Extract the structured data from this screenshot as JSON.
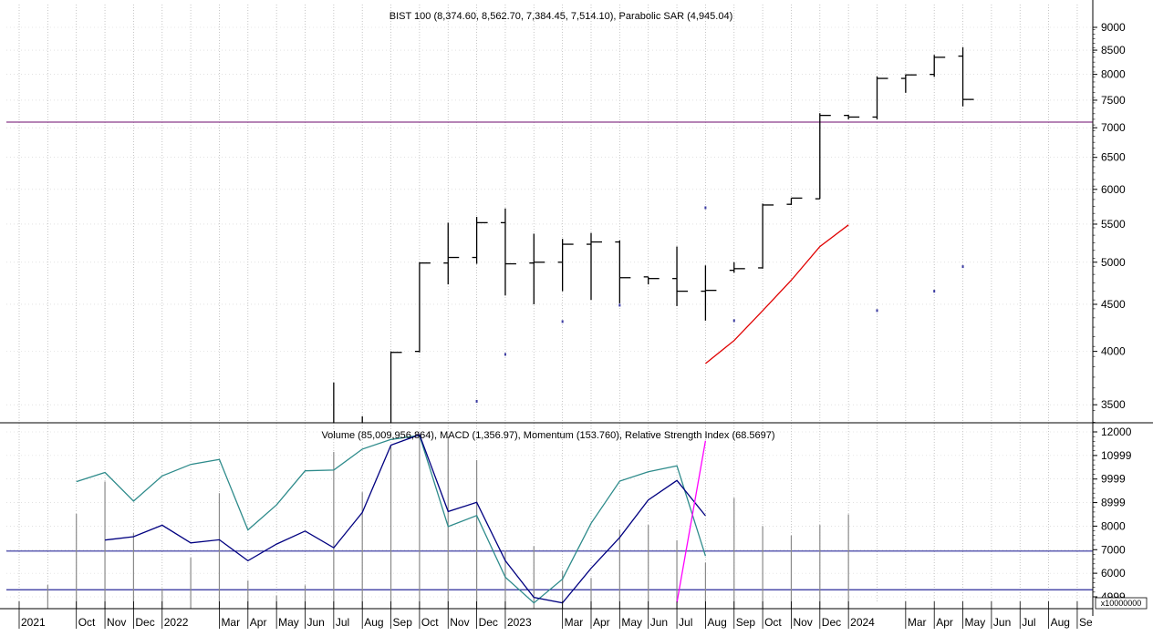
{
  "chart_data": [
    {
      "type": "ohlc",
      "title": "BIST 100 (8,374.60, 8,562.70, 7,384.45, 7,514.10), Parabolic SAR (4,945.04)",
      "yticks": [
        3500,
        4000,
        4500,
        5000,
        5500,
        6000,
        6500,
        7000,
        7500,
        8000,
        8500,
        9000
      ],
      "x_labels": [
        "2021",
        "Oct",
        "Nov",
        "Dec",
        "2022",
        "Mar",
        "Apr",
        "May",
        "Jun",
        "Jul",
        "Aug",
        "Sep",
        "Oct",
        "Nov",
        "Dec",
        "2023",
        "Mar",
        "Apr",
        "May",
        "Jun",
        "Jul",
        "Aug",
        "Sep",
        "Oct",
        "Nov",
        "Dec",
        "2024",
        "Mar",
        "Apr",
        "May",
        "Jun",
        "Jul",
        "Aug",
        "Se"
      ],
      "x_label_index": [
        0,
        2,
        3,
        4,
        5,
        7,
        8,
        9,
        10,
        11,
        12,
        13,
        14,
        15,
        16,
        17,
        19,
        20,
        21,
        22,
        23,
        24,
        25,
        26,
        27,
        28,
        29,
        31,
        32,
        33,
        34,
        35,
        36,
        37
      ],
      "ohlc": [
        {
          "month": "2022-07",
          "open": 3000,
          "high": 3150,
          "low": 3000,
          "close": 3100
        },
        {
          "month": "2022-08",
          "open": 3100,
          "high": 3700,
          "low": 3000,
          "close": 3300
        },
        {
          "month": "2022-09",
          "open": 3300,
          "high": 3400,
          "low": 3000,
          "close": 3300
        },
        {
          "month": "2022-10",
          "open": 3300,
          "high": 4000,
          "low": 3300,
          "close": 3990
        },
        {
          "month": "2022-11",
          "open": 4000,
          "high": 5000,
          "low": 3990,
          "close": 4990
        },
        {
          "month": "2022-12",
          "open": 4990,
          "high": 5520,
          "low": 4730,
          "close": 5060
        },
        {
          "month": "2023-01",
          "open": 5060,
          "high": 5600,
          "low": 4980,
          "close": 5520
        },
        {
          "month": "2023-02",
          "open": 5520,
          "high": 5720,
          "low": 4600,
          "close": 4980
        },
        {
          "month": "2023-03",
          "open": 4990,
          "high": 5370,
          "low": 4500,
          "close": 5000
        },
        {
          "month": "2023-04",
          "open": 5000,
          "high": 5300,
          "low": 4650,
          "close": 5230
        },
        {
          "month": "2023-05",
          "open": 5230,
          "high": 5380,
          "low": 4550,
          "close": 5260
        },
        {
          "month": "2023-06",
          "open": 5260,
          "high": 5280,
          "low": 4510,
          "close": 4810
        },
        {
          "month": "2023-07",
          "open": 4820,
          "high": 4820,
          "low": 4730,
          "close": 4800
        },
        {
          "month": "2023-08",
          "open": 4800,
          "high": 5200,
          "low": 4480,
          "close": 4650
        },
        {
          "month": "2023-09",
          "open": 4650,
          "high": 4960,
          "low": 4320,
          "close": 4660
        },
        {
          "month": "2023-10",
          "open": 4900,
          "high": 5000,
          "low": 4870,
          "close": 4920
        },
        {
          "month": "2023-11",
          "open": 4930,
          "high": 5790,
          "low": 4920,
          "close": 5770
        },
        {
          "month": "2023-12",
          "open": 5780,
          "high": 5870,
          "low": 5770,
          "close": 5870
        },
        {
          "month": "2024-01",
          "open": 5860,
          "high": 7260,
          "low": 5860,
          "close": 7220
        },
        {
          "month": "2024-02",
          "open": 7220,
          "high": 7230,
          "low": 7150,
          "close": 7190
        },
        {
          "month": "2024-03",
          "open": 7190,
          "high": 7960,
          "low": 7150,
          "close": 7920
        },
        {
          "month": "2024-04",
          "open": 7920,
          "high": 8000,
          "low": 7640,
          "close": 7990
        },
        {
          "month": "2024-05",
          "open": 8000,
          "high": 8400,
          "low": 7950,
          "close": 8350
        },
        {
          "month": "2024-06",
          "open": 8374.6,
          "high": 8562.7,
          "low": 7384.45,
          "close": 7514.1
        }
      ],
      "parabolic_sar_dots": [
        {
          "month": "2023-01",
          "value": 3530
        },
        {
          "month": "2023-02",
          "value": 3970
        },
        {
          "month": "2023-04",
          "value": 4310
        },
        {
          "month": "2023-06",
          "value": 4490
        },
        {
          "month": "2023-09",
          "value": 5730
        },
        {
          "month": "2023-10",
          "value": 4320
        },
        {
          "month": "2024-03",
          "value": 4430
        },
        {
          "month": "2024-05",
          "value": 4650
        },
        {
          "month": "2024-06",
          "value": 4945.04
        }
      ],
      "red_line": [
        {
          "month": "2023-09",
          "value": 3880
        },
        {
          "month": "2023-10",
          "value": 4110
        },
        {
          "month": "2023-11",
          "value": 4430
        },
        {
          "month": "2023-12",
          "value": 4780
        },
        {
          "month": "2024-01",
          "value": 5200
        },
        {
          "month": "2024-02",
          "value": 5490
        }
      ],
      "reference_line": 7100
    },
    {
      "type": "line",
      "title": "Volume (85,009,956,864), MACD (1,356.97), Momentum (153.760), Relative Strength Index (68.5697)",
      "yticks": [
        "4999",
        "6000",
        "7000",
        "8000",
        "8999",
        "9999",
        "10999",
        "12000"
      ],
      "ytick_values": [
        4999,
        6000,
        7000,
        8000,
        8999,
        9999,
        10999,
        12000
      ],
      "multiplier": "x10000000",
      "reference_lines": [
        6940,
        5300
      ],
      "volume_bars": [
        {
          "month": "2021-10",
          "value": 5500
        },
        {
          "month": "2021-11",
          "value": 8520
        },
        {
          "month": "2021-12",
          "value": 9890
        },
        {
          "month": "2022-01",
          "value": 7700
        },
        {
          "month": "2022-02",
          "value": 5350
        },
        {
          "month": "2022-03",
          "value": 6660
        },
        {
          "month": "2022-04",
          "value": 9400
        },
        {
          "month": "2022-05",
          "value": 5690
        },
        {
          "month": "2022-06",
          "value": 5050
        },
        {
          "month": "2022-07",
          "value": 5490
        },
        {
          "month": "2022-08",
          "value": 11150
        },
        {
          "month": "2022-09",
          "value": 9440
        },
        {
          "month": "2022-10",
          "value": 11430
        },
        {
          "month": "2022-11",
          "value": 11900
        },
        {
          "month": "2022-12",
          "value": 11800
        },
        {
          "month": "2023-01",
          "value": 10800
        },
        {
          "month": "2023-02",
          "value": 6950
        },
        {
          "month": "2023-03",
          "value": 7150
        },
        {
          "month": "2023-04",
          "value": 6100
        },
        {
          "month": "2023-05",
          "value": 5800
        },
        {
          "month": "2023-06",
          "value": 7850
        },
        {
          "month": "2023-07",
          "value": 8050
        },
        {
          "month": "2023-08",
          "value": 7400
        },
        {
          "month": "2023-09",
          "value": 6450
        },
        {
          "month": "2023-10",
          "value": 9200
        },
        {
          "month": "2023-11",
          "value": 8000
        },
        {
          "month": "2023-12",
          "value": 7600
        },
        {
          "month": "2024-01",
          "value": 8050
        },
        {
          "month": "2024-02",
          "value": 8500
        }
      ],
      "series": [
        {
          "color": "#2e8b8b",
          "points": [
            {
              "month": "2021-11",
              "value": 9890
            },
            {
              "month": "2021-12",
              "value": 10280
            },
            {
              "month": "2022-01",
              "value": 9060
            },
            {
              "month": "2022-02",
              "value": 10130
            },
            {
              "month": "2022-03",
              "value": 10620
            },
            {
              "month": "2022-04",
              "value": 10830
            },
            {
              "month": "2022-05",
              "value": 7840
            },
            {
              "month": "2022-06",
              "value": 8900
            },
            {
              "month": "2022-07",
              "value": 10350
            },
            {
              "month": "2022-08",
              "value": 10380
            },
            {
              "month": "2022-09",
              "value": 11270
            },
            {
              "month": "2022-10",
              "value": 11680
            },
            {
              "month": "2022-11",
              "value": 11850
            },
            {
              "month": "2022-12",
              "value": 7980
            },
            {
              "month": "2023-01",
              "value": 8450
            },
            {
              "month": "2023-02",
              "value": 5830
            },
            {
              "month": "2023-03",
              "value": 4740
            },
            {
              "month": "2023-04",
              "value": 5750
            },
            {
              "month": "2023-05",
              "value": 8120
            },
            {
              "month": "2023-06",
              "value": 9910
            },
            {
              "month": "2023-07",
              "value": 10310
            },
            {
              "month": "2023-08",
              "value": 10560
            },
            {
              "month": "2023-09",
              "value": 6730
            }
          ]
        },
        {
          "color": "#000080",
          "points": [
            {
              "month": "2021-12",
              "value": 7410
            },
            {
              "month": "2022-01",
              "value": 7550
            },
            {
              "month": "2022-02",
              "value": 8040
            },
            {
              "month": "2022-03",
              "value": 7290
            },
            {
              "month": "2022-04",
              "value": 7420
            },
            {
              "month": "2022-05",
              "value": 6530
            },
            {
              "month": "2022-06",
              "value": 7240
            },
            {
              "month": "2022-07",
              "value": 7790
            },
            {
              "month": "2022-08",
              "value": 7080
            },
            {
              "month": "2022-09",
              "value": 8580
            },
            {
              "month": "2022-10",
              "value": 11440
            },
            {
              "month": "2022-11",
              "value": 11880
            },
            {
              "month": "2022-12",
              "value": 8620
            },
            {
              "month": "2023-01",
              "value": 9010
            },
            {
              "month": "2023-02",
              "value": 6530
            },
            {
              "month": "2023-03",
              "value": 4970
            },
            {
              "month": "2023-04",
              "value": 4740
            },
            {
              "month": "2023-05",
              "value": 6210
            },
            {
              "month": "2023-06",
              "value": 7520
            },
            {
              "month": "2023-07",
              "value": 9110
            },
            {
              "month": "2023-08",
              "value": 9940
            },
            {
              "month": "2023-09",
              "value": 8440
            }
          ]
        },
        {
          "color": "#ff00ff",
          "points": [
            {
              "month": "2023-08",
              "value": 4760
            },
            {
              "month": "2023-09",
              "value": 11620
            }
          ]
        }
      ]
    }
  ]
}
